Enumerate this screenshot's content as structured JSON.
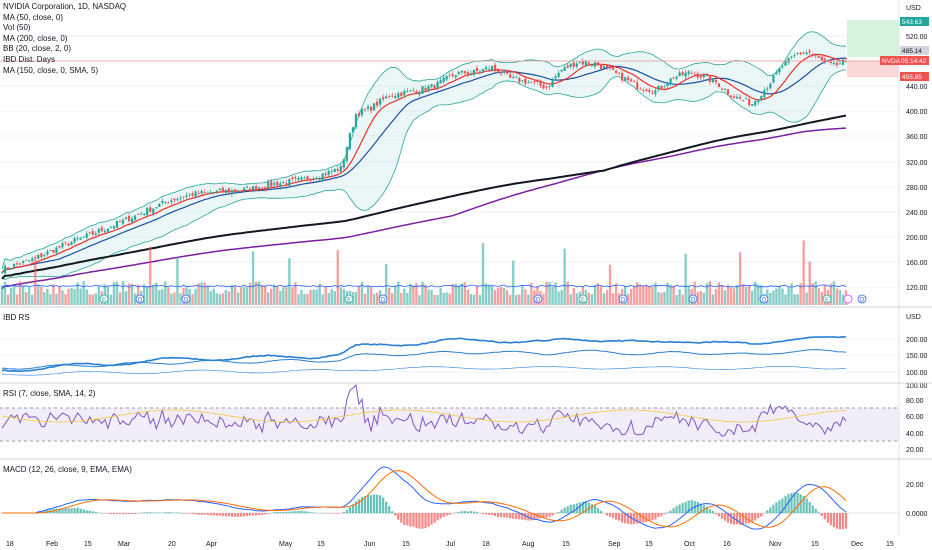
{
  "legend": {
    "title": "NVIDIA Corporation, 1D, NASDAQ",
    "lines": [
      "MA (50, close, 0)",
      "Vol (50)",
      "MA (200, close, 0)",
      "IBD Dist. Days",
      "BB (20, close, 2, 0)",
      "MA (150, close, 0, SMA, 5)"
    ]
  },
  "currency": "USD",
  "price_tags": {
    "high": "543.63",
    "prev": "485.14",
    "symbol": "NVDA",
    "timer": "05:14:42",
    "low": "455.85"
  },
  "panes": {
    "ibd_rs": {
      "title": "IBD RS",
      "unit": "USD"
    },
    "rsi": {
      "title": "RSI (7, close, SMA, 14, 2)"
    },
    "macd": {
      "title": "MACD (12, 26, close, 9, EMA, EMA)"
    }
  },
  "colors": {
    "up": "#26a69a",
    "down": "#ef5350",
    "ma50": "#ef2d2d",
    "ma200": "#131722",
    "ma150": "#7b1fa2",
    "bb_mid": "#1e4fa3",
    "bb_band": "#26a69a",
    "rs": "#2a7fd4",
    "rsi": "#7e57c2",
    "macd": "#2962ff",
    "signal": "#ff6d00"
  },
  "chart_data": [
    {
      "type": "line",
      "name": "price",
      "x_ticks": [
        "18",
        "Feb",
        "15",
        "Mar",
        "20",
        "Apr",
        "May",
        "15",
        "Jun",
        "15",
        "Jul",
        "18",
        "Aug",
        "15",
        "Sep",
        "15",
        "Oct",
        "16",
        "Nov",
        "15",
        "Dec",
        "15"
      ],
      "y_ticks": [
        "520.00",
        "480.00",
        "440.00",
        "400.00",
        "360.00",
        "320.00",
        "280.00",
        "240.00",
        "200.00",
        "160.00",
        "120.00"
      ],
      "ylim": [
        100,
        560
      ],
      "close_anchors": [
        [
          0,
          148
        ],
        [
          10,
          164
        ],
        [
          22,
          190
        ],
        [
          35,
          215
        ],
        [
          45,
          236
        ],
        [
          55,
          258
        ],
        [
          62,
          268
        ],
        [
          70,
          272
        ],
        [
          80,
          275
        ],
        [
          90,
          285
        ],
        [
          100,
          292
        ],
        [
          107,
          302
        ],
        [
          112,
          310
        ],
        [
          117,
          395
        ],
        [
          122,
          405
        ],
        [
          128,
          425
        ],
        [
          136,
          432
        ],
        [
          143,
          440
        ],
        [
          150,
          460
        ],
        [
          156,
          462
        ],
        [
          162,
          470
        ],
        [
          168,
          452
        ],
        [
          175,
          445
        ],
        [
          180,
          438
        ],
        [
          185,
          466
        ],
        [
          190,
          478
        ],
        [
          196,
          476
        ],
        [
          202,
          462
        ],
        [
          210,
          440
        ],
        [
          216,
          432
        ],
        [
          222,
          454
        ],
        [
          228,
          462
        ],
        [
          236,
          446
        ],
        [
          242,
          423
        ],
        [
          248,
          412
        ],
        [
          253,
          440
        ],
        [
          258,
          472
        ],
        [
          263,
          492
        ],
        [
          267,
          494
        ],
        [
          272,
          476
        ],
        [
          275,
          472
        ],
        [
          278,
          478
        ]
      ]
    },
    {
      "type": "line",
      "name": "IBD RS",
      "y_ticks": [
        "200.00",
        "150.00",
        "100.00"
      ],
      "ylim": [
        90,
        230
      ]
    },
    {
      "type": "line",
      "name": "RSI",
      "y_ticks": [
        "100.00",
        "80.00",
        "60.00",
        "40.00",
        "20.00"
      ],
      "ylim": [
        15,
        100
      ],
      "bands": [
        70,
        30
      ]
    },
    {
      "type": "bar",
      "name": "MACD",
      "y_ticks": [
        "20.00",
        "0.0000"
      ],
      "ylim": [
        -10,
        30
      ]
    }
  ]
}
